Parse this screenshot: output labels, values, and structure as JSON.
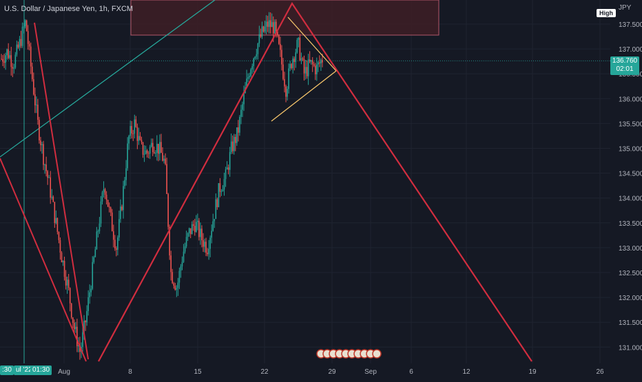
{
  "symbol": {
    "title": "U.S. Dollar / Japanese Yen, 1h, FXCM",
    "unit": "JPY",
    "high_badge": "High",
    "last_price": "136.760",
    "countdown": "02:01"
  },
  "colors": {
    "background": "#151924",
    "grid": "#1f2430",
    "up_candle": "#26a69a",
    "down_candle": "#ef5350",
    "zigzag": "#d12d3f",
    "trend_line": "#26a69a",
    "triangle": "#f6c56b",
    "resistance_zone_fill": "#3b1e26",
    "resistance_zone_border": "#b4586a",
    "price_label_bg": "#26a69a"
  },
  "x_axis": {
    "labels": [
      "Aug",
      "8",
      "15",
      "22",
      "29",
      "Sep",
      "6",
      "12",
      "19",
      "26"
    ],
    "crosshair_labels": [
      ":30",
      "ul '22",
      "01:30"
    ],
    "crosshair_date": "01:30"
  },
  "y_axis": {
    "labels": [
      "137.500",
      "137.000",
      "136.500",
      "136.000",
      "135.500",
      "135.000",
      "134.500",
      "134.000",
      "133.500",
      "133.000",
      "132.500",
      "132.000",
      "131.500",
      "131.000"
    ]
  },
  "chart_data": {
    "type": "candlestick",
    "title": "U.S. Dollar / Japanese Yen, 1h, FXCM",
    "xlabel": "",
    "ylabel": "JPY",
    "ylim": [
      130.75,
      137.85
    ],
    "grid": true,
    "x_ticks": [
      "Aug",
      "8",
      "15",
      "22",
      "29",
      "Sep",
      "6",
      "12",
      "19",
      "26"
    ],
    "y_ticks": [
      137.5,
      137.0,
      136.5,
      136.0,
      135.5,
      135.0,
      134.5,
      134.0,
      133.5,
      133.0,
      132.5,
      132.0,
      131.5,
      131.0
    ],
    "last_price": 136.76,
    "price_path": [
      136.8,
      136.95,
      136.7,
      137.1,
      137.55,
      136.5,
      135.5,
      134.8,
      134.2,
      133.5,
      132.8,
      132.2,
      131.4,
      130.9,
      131.6,
      132.5,
      133.4,
      134.3,
      133.6,
      133.0,
      134.0,
      135.2,
      135.5,
      135.0,
      134.9,
      135.1,
      135.0,
      134.7,
      132.5,
      132.2,
      132.9,
      133.3,
      133.5,
      133.2,
      133.0,
      133.6,
      134.2,
      134.4,
      135.0,
      135.3,
      136.0,
      136.6,
      137.0,
      137.3,
      137.5,
      137.45,
      136.9,
      136.2,
      136.8,
      137.1,
      136.5,
      136.7,
      136.6,
      136.8
    ]
  }
}
